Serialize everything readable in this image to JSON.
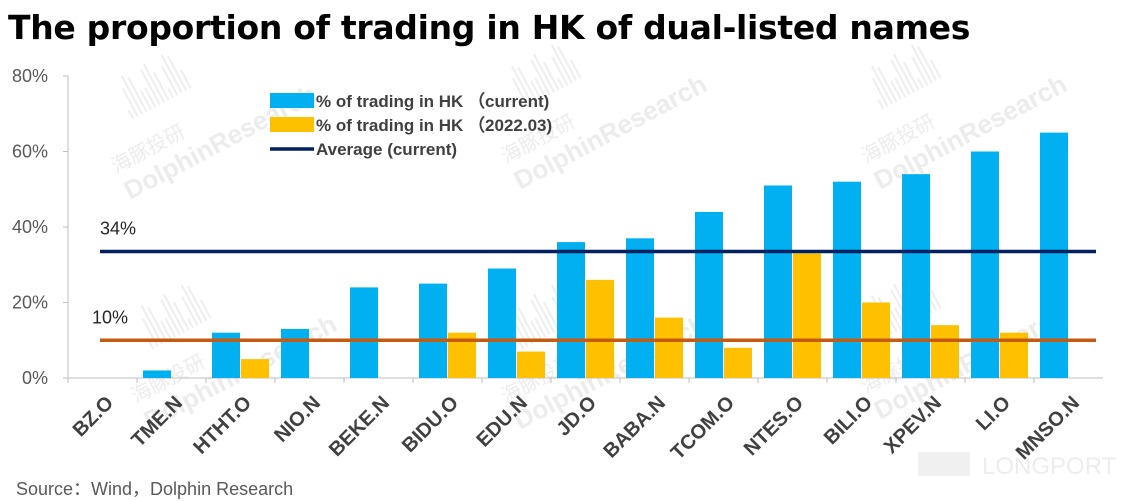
{
  "page": {
    "title": "The proportion of trading in HK of dual-listed names",
    "source": "Source：Wind，Dolphin Research"
  },
  "watermarks": [
    "海豚投研",
    "DolphinResearch",
    "LONGPORT"
  ],
  "chart_data": {
    "type": "bar",
    "title": "The proportion of trading in HK of dual-listed names",
    "categories": [
      "BZ.O",
      "TME.N",
      "HTHT.O",
      "NIO.N",
      "BEKE.N",
      "BIDU.O",
      "EDU.N",
      "JD.O",
      "BABA.N",
      "TCOM.O",
      "NTES.O",
      "BILI.O",
      "XPEV.N",
      "LI.O",
      "MNSO.N"
    ],
    "series": [
      {
        "name": "% of trading in HK （current)",
        "color": "#00B0F0",
        "values": [
          0,
          2,
          12,
          13,
          24,
          25,
          29,
          36,
          37,
          44,
          51,
          52,
          54,
          60,
          65
        ]
      },
      {
        "name": "% of trading in HK （2022.03)",
        "color": "#FFC000",
        "values": [
          0,
          0,
          5,
          0,
          0,
          12,
          7,
          26,
          16,
          8,
          33,
          20,
          14,
          12,
          0
        ]
      }
    ],
    "reference_lines": [
      {
        "name": "Average (current)",
        "value": 33.5,
        "label": "34%",
        "color": "#002060",
        "in_legend": true
      },
      {
        "name": "",
        "value": 10,
        "label": "10%",
        "color": "#C55A11",
        "in_legend": false
      }
    ],
    "yticks": [
      "0%",
      "20%",
      "40%",
      "60%",
      "80%"
    ],
    "ylim": [
      0,
      80
    ],
    "grid": false,
    "legend_position": "top-left"
  }
}
